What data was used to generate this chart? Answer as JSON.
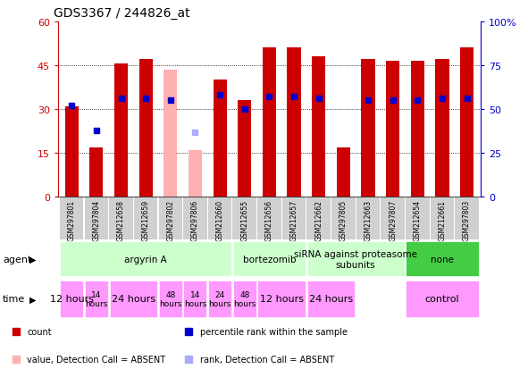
{
  "title": "GDS3367 / 244826_at",
  "samples": [
    "GSM297801",
    "GSM297804",
    "GSM212658",
    "GSM212659",
    "GSM297802",
    "GSM297806",
    "GSM212660",
    "GSM212655",
    "GSM212656",
    "GSM212657",
    "GSM212662",
    "GSM297805",
    "GSM212663",
    "GSM297807",
    "GSM212654",
    "GSM212661",
    "GSM297803"
  ],
  "counts": [
    31,
    17,
    45.5,
    47,
    null,
    null,
    40,
    33,
    51,
    51,
    48,
    17,
    47,
    46.5,
    46.5,
    47,
    51
  ],
  "counts_absent": [
    null,
    null,
    null,
    null,
    43.5,
    16,
    null,
    null,
    null,
    null,
    null,
    null,
    null,
    null,
    null,
    null,
    null
  ],
  "ranks_pct": [
    52,
    38,
    56,
    56,
    55,
    null,
    58,
    50,
    57,
    57,
    56,
    null,
    55,
    55,
    55,
    56,
    56
  ],
  "ranks_absent_pct": [
    null,
    null,
    null,
    null,
    null,
    37,
    null,
    null,
    null,
    null,
    null,
    null,
    null,
    null,
    null,
    null,
    null
  ],
  "ylim_left": [
    0,
    60
  ],
  "ylim_right": [
    0,
    100
  ],
  "yticks_left": [
    0,
    15,
    30,
    45,
    60
  ],
  "yticks_right": [
    0,
    25,
    50,
    75,
    100
  ],
  "bar_color": "#cc0000",
  "bar_absent_color": "#ffb0b0",
  "rank_color": "#0000cc",
  "rank_absent_color": "#aaaaff",
  "bar_width": 0.55,
  "rank_marker_size": 5,
  "bg_color": "#ffffff",
  "label_bg_color": "#d0d0d0",
  "agent_spans": [
    {
      "label": "argyrin A",
      "start": 0,
      "end": 7,
      "color": "#ccffcc"
    },
    {
      "label": "bortezomib",
      "start": 7,
      "end": 10,
      "color": "#ccffcc"
    },
    {
      "label": "siRNA against proteasome\nsubunits",
      "start": 10,
      "end": 14,
      "color": "#ccffcc"
    },
    {
      "label": "none",
      "start": 14,
      "end": 17,
      "color": "#44cc44"
    }
  ],
  "time_spans": [
    {
      "label": "12 hours",
      "start": 0,
      "end": 1,
      "fontsize": 8
    },
    {
      "label": "14\nhours",
      "start": 1,
      "end": 2,
      "fontsize": 6.5
    },
    {
      "label": "24 hours",
      "start": 2,
      "end": 4,
      "fontsize": 8
    },
    {
      "label": "48\nhours",
      "start": 4,
      "end": 5,
      "fontsize": 6.5
    },
    {
      "label": "14\nhours",
      "start": 5,
      "end": 6,
      "fontsize": 6.5
    },
    {
      "label": "24\nhours",
      "start": 6,
      "end": 7,
      "fontsize": 6.5
    },
    {
      "label": "48\nhours",
      "start": 7,
      "end": 8,
      "fontsize": 6.5
    },
    {
      "label": "12 hours",
      "start": 8,
      "end": 10,
      "fontsize": 8
    },
    {
      "label": "24 hours",
      "start": 10,
      "end": 12,
      "fontsize": 8
    },
    {
      "label": "control",
      "start": 14,
      "end": 17,
      "fontsize": 8
    }
  ],
  "legend_items": [
    {
      "color": "#cc0000",
      "label": "count"
    },
    {
      "color": "#0000cc",
      "label": "percentile rank within the sample"
    },
    {
      "color": "#ffb0b0",
      "label": "value, Detection Call = ABSENT"
    },
    {
      "color": "#aaaaff",
      "label": "rank, Detection Call = ABSENT"
    }
  ]
}
